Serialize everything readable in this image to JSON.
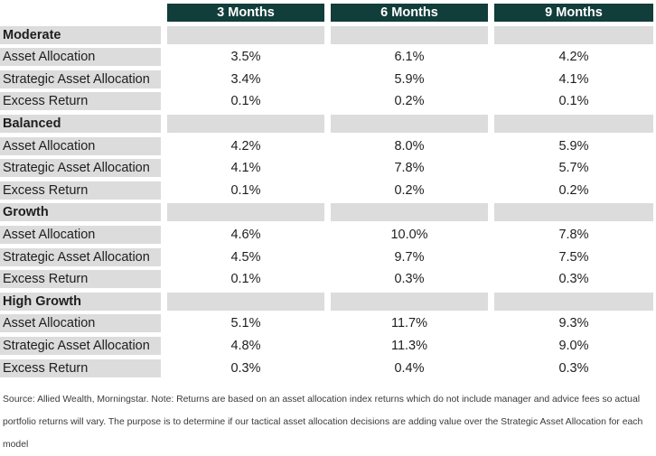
{
  "header": {
    "columns": [
      "3 Months",
      "6 Months",
      "9 Months"
    ]
  },
  "groups": [
    {
      "name": "Moderate",
      "rows": [
        {
          "label": "Asset Allocation",
          "values": [
            "3.5%",
            "6.1%",
            "4.2%"
          ]
        },
        {
          "label": "Strategic Asset Allocation",
          "values": [
            "3.4%",
            "5.9%",
            "4.1%"
          ]
        },
        {
          "label": "Excess Return",
          "values": [
            "0.1%",
            "0.2%",
            "0.1%"
          ]
        }
      ]
    },
    {
      "name": "Balanced",
      "rows": [
        {
          "label": "Asset Allocation",
          "values": [
            "4.2%",
            "8.0%",
            "5.9%"
          ]
        },
        {
          "label": "Strategic Asset Allocation",
          "values": [
            "4.1%",
            "7.8%",
            "5.7%"
          ]
        },
        {
          "label": "Excess Return",
          "values": [
            "0.1%",
            "0.2%",
            "0.2%"
          ]
        }
      ]
    },
    {
      "name": "Growth",
      "rows": [
        {
          "label": "Asset Allocation",
          "values": [
            "4.6%",
            "10.0%",
            "7.8%"
          ]
        },
        {
          "label": "Strategic Asset Allocation",
          "values": [
            "4.5%",
            "9.7%",
            "7.5%"
          ]
        },
        {
          "label": "Excess Return",
          "values": [
            "0.1%",
            "0.3%",
            "0.3%"
          ]
        }
      ]
    },
    {
      "name": "High Growth",
      "rows": [
        {
          "label": "Asset Allocation",
          "values": [
            "5.1%",
            "11.7%",
            "9.3%"
          ]
        },
        {
          "label": "Strategic Asset Allocation",
          "values": [
            "4.8%",
            "11.3%",
            "9.0%"
          ]
        },
        {
          "label": "Excess Return",
          "values": [
            "0.3%",
            "0.4%",
            "0.3%"
          ]
        }
      ]
    }
  ],
  "source": "Source: Allied Wealth, Morningstar. Note: Returns are based on an asset allocation index returns which do not include manager and advice fees so actual portfolio returns will vary.  The purpose is to determine if our tactical asset allocation decisions are adding value over the Strategic Asset Allocation for each model",
  "colors": {
    "header_bg": "#113d3a",
    "header_text": "#ffffff",
    "cell_bg": "#dcdcdc"
  }
}
